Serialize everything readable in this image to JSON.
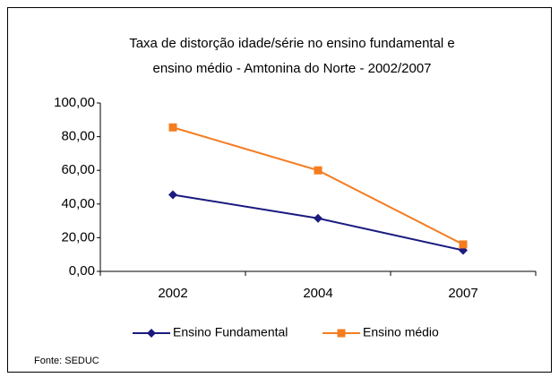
{
  "chart_data": {
    "type": "line",
    "title": [
      "Taxa de distorção idade/série no ensino fundamental e",
      "ensino médio - Amtonina do Norte - 2002/2007"
    ],
    "categories": [
      "2002",
      "2004",
      "2007"
    ],
    "series": [
      {
        "name": "Ensino Fundamental",
        "color": "#1a1a80",
        "marker": "diamond",
        "values": [
          45.5,
          31.5,
          12.5
        ]
      },
      {
        "name": "Ensino médio",
        "color": "#f57c1f",
        "marker": "square",
        "values": [
          85.5,
          60,
          16
        ]
      }
    ],
    "ylim": [
      0,
      100
    ],
    "yticks": [
      {
        "value": 0,
        "label": "0,00"
      },
      {
        "value": 20,
        "label": "20,00"
      },
      {
        "value": 40,
        "label": "40,00"
      },
      {
        "value": 60,
        "label": "60,00"
      },
      {
        "value": 80,
        "label": "80,00"
      },
      {
        "value": 100,
        "label": "100,00"
      }
    ],
    "legend": "bottom",
    "source": "Fonte: SEDUC"
  }
}
